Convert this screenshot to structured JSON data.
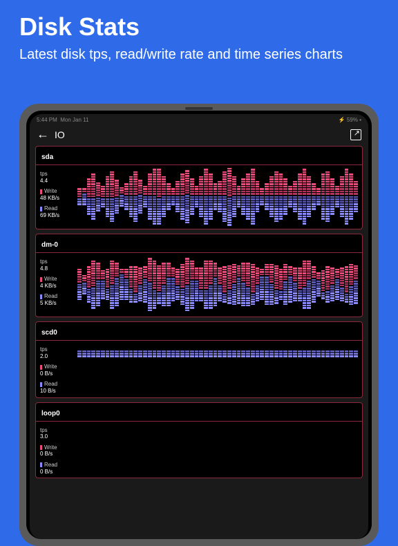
{
  "header": {
    "title": "Disk Stats",
    "subtitle": "Latest disk tps, read/write rate and time series charts"
  },
  "statusBar": {
    "time": "5:44 PM",
    "date": "Mon Jan 11",
    "battery": "59%"
  },
  "nav": {
    "title": "IO"
  },
  "colors": {
    "write": "#e94b7a",
    "write_dark": "#b23560",
    "read": "#8a8aff",
    "read_dark": "#5a5ab5",
    "border": "#8a2a3a",
    "bg": "#2f6be8"
  },
  "chartStyle": {
    "segmentHeight": 3,
    "segmentGap": 1,
    "maxSegmentsPerDir": 12,
    "numCols": 60
  },
  "disks": [
    {
      "name": "sda",
      "tps": "4.4",
      "write": "48 KB/s",
      "read": "69 KB/s",
      "writeSeries": [
        4,
        2,
        8,
        10,
        6,
        5,
        9,
        11,
        7,
        3,
        5,
        8,
        10,
        6,
        4,
        9,
        11,
        12,
        8,
        5,
        3,
        6,
        9,
        10,
        7,
        4,
        8,
        11,
        9,
        5,
        6,
        10,
        12,
        8,
        4,
        7,
        9,
        11,
        6,
        3,
        5,
        8,
        10,
        9,
        7,
        4,
        6,
        9,
        11,
        8,
        5,
        3,
        9,
        10,
        7,
        4,
        8,
        11,
        9,
        6
      ],
      "readSeries": [
        3,
        5,
        7,
        9,
        6,
        4,
        8,
        10,
        7,
        5,
        6,
        9,
        11,
        8,
        5,
        10,
        12,
        11,
        9,
        6,
        4,
        7,
        10,
        12,
        8,
        5,
        9,
        12,
        10,
        6,
        7,
        11,
        12,
        9,
        5,
        8,
        10,
        12,
        7,
        4,
        6,
        9,
        11,
        10,
        8,
        5,
        7,
        10,
        12,
        9,
        6,
        4,
        10,
        11,
        8,
        5,
        9,
        12,
        10,
        7
      ]
    },
    {
      "name": "dm-0",
      "tps": "4.8",
      "write": "4 KB/s",
      "read": "5 KB/s",
      "writeSeries": [
        6,
        3,
        9,
        11,
        7,
        4,
        8,
        10,
        6,
        2,
        4,
        9,
        11,
        7,
        5,
        10,
        12,
        11,
        9,
        6,
        4,
        7,
        10,
        11,
        8,
        5,
        9,
        12,
        10,
        6,
        7,
        11,
        10,
        8,
        5,
        8,
        10,
        12,
        7,
        3,
        5,
        8,
        10,
        9,
        7,
        4,
        6,
        9,
        11,
        8,
        5,
        3,
        9,
        10,
        7,
        4,
        8,
        11,
        9,
        6
      ],
      "readSeries": [
        7,
        5,
        6,
        9,
        11,
        8,
        5,
        10,
        12,
        11,
        9,
        6,
        4,
        7,
        10,
        12,
        8,
        5,
        9,
        12,
        10,
        6,
        7,
        11,
        12,
        9,
        5,
        8,
        10,
        12,
        7,
        4,
        6,
        9,
        11,
        10,
        8,
        5,
        7,
        10,
        12,
        9,
        6,
        4,
        10,
        11,
        8,
        5,
        9,
        12,
        10,
        7,
        3,
        5,
        7,
        9,
        6,
        4,
        8,
        10
      ]
    },
    {
      "name": "scd0",
      "tps": "2.0",
      "write": "0 B/s",
      "read": "10 B/s",
      "writeSeries": [
        0,
        0,
        0,
        0,
        0,
        0,
        0,
        0,
        0,
        0,
        0,
        0,
        0,
        0,
        0,
        0,
        0,
        0,
        0,
        0,
        0,
        0,
        0,
        0,
        0,
        0,
        0,
        0,
        0,
        0,
        0,
        0,
        0,
        0,
        0,
        0,
        0,
        0,
        0,
        0,
        0,
        0,
        0,
        0,
        0,
        0,
        0,
        0,
        0,
        0,
        0,
        0,
        0,
        0,
        0,
        0,
        0,
        0,
        0,
        0
      ],
      "readSeries": [
        3,
        3,
        3,
        3,
        3,
        3,
        3,
        3,
        3,
        3,
        3,
        3,
        3,
        3,
        3,
        3,
        3,
        3,
        3,
        3,
        3,
        3,
        3,
        3,
        3,
        3,
        3,
        3,
        3,
        3,
        3,
        3,
        3,
        3,
        3,
        3,
        3,
        3,
        3,
        3,
        3,
        3,
        3,
        3,
        3,
        3,
        3,
        3,
        3,
        3,
        3,
        3,
        3,
        3,
        3,
        3,
        3,
        3,
        3,
        3
      ],
      "small": true
    },
    {
      "name": "loop0",
      "tps": "3.0",
      "write": "0 B/s",
      "read": "0 B/s",
      "writeSeries": [
        0,
        0,
        0,
        0,
        0,
        0,
        0,
        0,
        0,
        0,
        0,
        0,
        0,
        0,
        0,
        0,
        0,
        0,
        0,
        0,
        0,
        0,
        0,
        0,
        0,
        0,
        0,
        0,
        0,
        0,
        0,
        0,
        0,
        0,
        0,
        0,
        0,
        0,
        0,
        0,
        0,
        0,
        0,
        0,
        0,
        0,
        0,
        0,
        0,
        0,
        0,
        0,
        0,
        0,
        0,
        0,
        0,
        0,
        0,
        0
      ],
      "readSeries": [
        0,
        0,
        0,
        0,
        0,
        0,
        0,
        0,
        0,
        0,
        0,
        0,
        0,
        0,
        0,
        0,
        0,
        0,
        0,
        0,
        0,
        0,
        0,
        0,
        0,
        0,
        0,
        0,
        0,
        0,
        0,
        0,
        0,
        0,
        0,
        0,
        0,
        0,
        0,
        0,
        0,
        0,
        0,
        0,
        0,
        0,
        0,
        0,
        0,
        0,
        0,
        0,
        0,
        0,
        0,
        0,
        0,
        0,
        0,
        0
      ],
      "small": true
    }
  ]
}
